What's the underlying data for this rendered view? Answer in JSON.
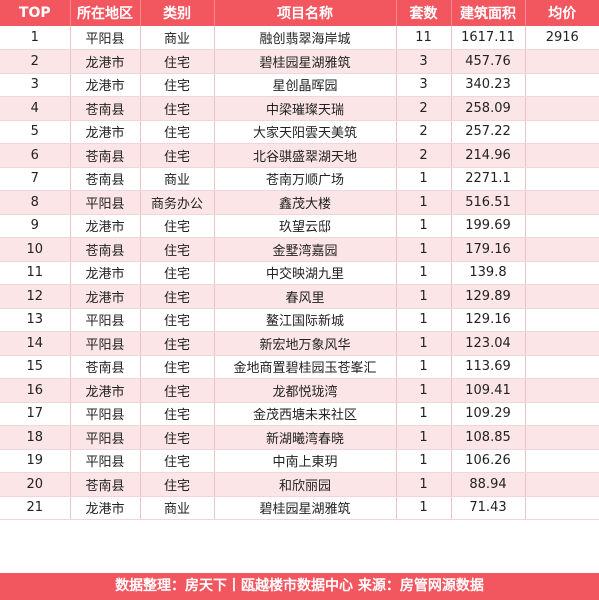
{
  "headers": [
    "TOP",
    "所在地区",
    "类别",
    "项目名称",
    "套数",
    "建筑面积",
    "均价"
  ],
  "rows": [
    {
      "top": "1",
      "region": "平阳县",
      "category": "商业",
      "project": "融创翡翠海岸城",
      "units": "11",
      "area": "1617.11",
      "price": "2916"
    },
    {
      "top": "2",
      "region": "龙港市",
      "category": "住宅",
      "project": "碧桂园星湖雅筑",
      "units": "3",
      "area": "457.76",
      "price": ""
    },
    {
      "top": "3",
      "region": "龙港市",
      "category": "住宅",
      "project": "星创晶晖园",
      "units": "3",
      "area": "340.23",
      "price": ""
    },
    {
      "top": "4",
      "region": "苍南县",
      "category": "住宅",
      "project": "中梁璀璨天瑞",
      "units": "2",
      "area": "258.09",
      "price": ""
    },
    {
      "top": "5",
      "region": "龙港市",
      "category": "住宅",
      "project": "大家天阳雲天美筑",
      "units": "2",
      "area": "257.22",
      "price": ""
    },
    {
      "top": "6",
      "region": "苍南县",
      "category": "住宅",
      "project": "北谷骐盛翠湖天地",
      "units": "2",
      "area": "214.96",
      "price": ""
    },
    {
      "top": "7",
      "region": "苍南县",
      "category": "商业",
      "project": "苍南万顺广场",
      "units": "1",
      "area": "2271.1",
      "price": ""
    },
    {
      "top": "8",
      "region": "平阳县",
      "category": "商务办公",
      "project": "鑫茂大楼",
      "units": "1",
      "area": "516.51",
      "price": ""
    },
    {
      "top": "9",
      "region": "龙港市",
      "category": "住宅",
      "project": "玖望云邸",
      "units": "1",
      "area": "199.69",
      "price": ""
    },
    {
      "top": "10",
      "region": "苍南县",
      "category": "住宅",
      "project": "金墅湾嘉园",
      "units": "1",
      "area": "179.16",
      "price": ""
    },
    {
      "top": "11",
      "region": "龙港市",
      "category": "住宅",
      "project": "中交映湖九里",
      "units": "1",
      "area": "139.8",
      "price": ""
    },
    {
      "top": "12",
      "region": "龙港市",
      "category": "住宅",
      "project": "春风里",
      "units": "1",
      "area": "129.89",
      "price": ""
    },
    {
      "top": "13",
      "region": "平阳县",
      "category": "住宅",
      "project": "鳌江国际新城",
      "units": "1",
      "area": "129.16",
      "price": ""
    },
    {
      "top": "14",
      "region": "平阳县",
      "category": "住宅",
      "project": "新宏地万象风华",
      "units": "1",
      "area": "123.04",
      "price": ""
    },
    {
      "top": "15",
      "region": "苍南县",
      "category": "住宅",
      "project": "金地商置碧桂园玉苍峯汇",
      "units": "1",
      "area": "113.69",
      "price": ""
    },
    {
      "top": "16",
      "region": "龙港市",
      "category": "住宅",
      "project": "龙都悦珑湾",
      "units": "1",
      "area": "109.41",
      "price": ""
    },
    {
      "top": "17",
      "region": "平阳县",
      "category": "住宅",
      "project": "金茂西塘未来社区",
      "units": "1",
      "area": "109.29",
      "price": ""
    },
    {
      "top": "18",
      "region": "平阳县",
      "category": "住宅",
      "project": "新湖曦湾春晓",
      "units": "1",
      "area": "108.85",
      "price": ""
    },
    {
      "top": "19",
      "region": "平阳县",
      "category": "住宅",
      "project": "中南上東玥",
      "units": "1",
      "area": "106.26",
      "price": ""
    },
    {
      "top": "20",
      "region": "苍南县",
      "category": "住宅",
      "project": "和欣丽园",
      "units": "1",
      "area": "88.94",
      "price": ""
    },
    {
      "top": "21",
      "region": "龙港市",
      "category": "商业",
      "project": "碧桂园星湖雅筑",
      "units": "1",
      "area": "71.43",
      "price": ""
    }
  ],
  "footer": "数据整理：房天下丨瓯越楼市数据中心   来源：房管网源数据",
  "colors": {
    "header_bg": "#f2565f",
    "alt_row_bg": "#fce5e6",
    "text": "#222222"
  }
}
